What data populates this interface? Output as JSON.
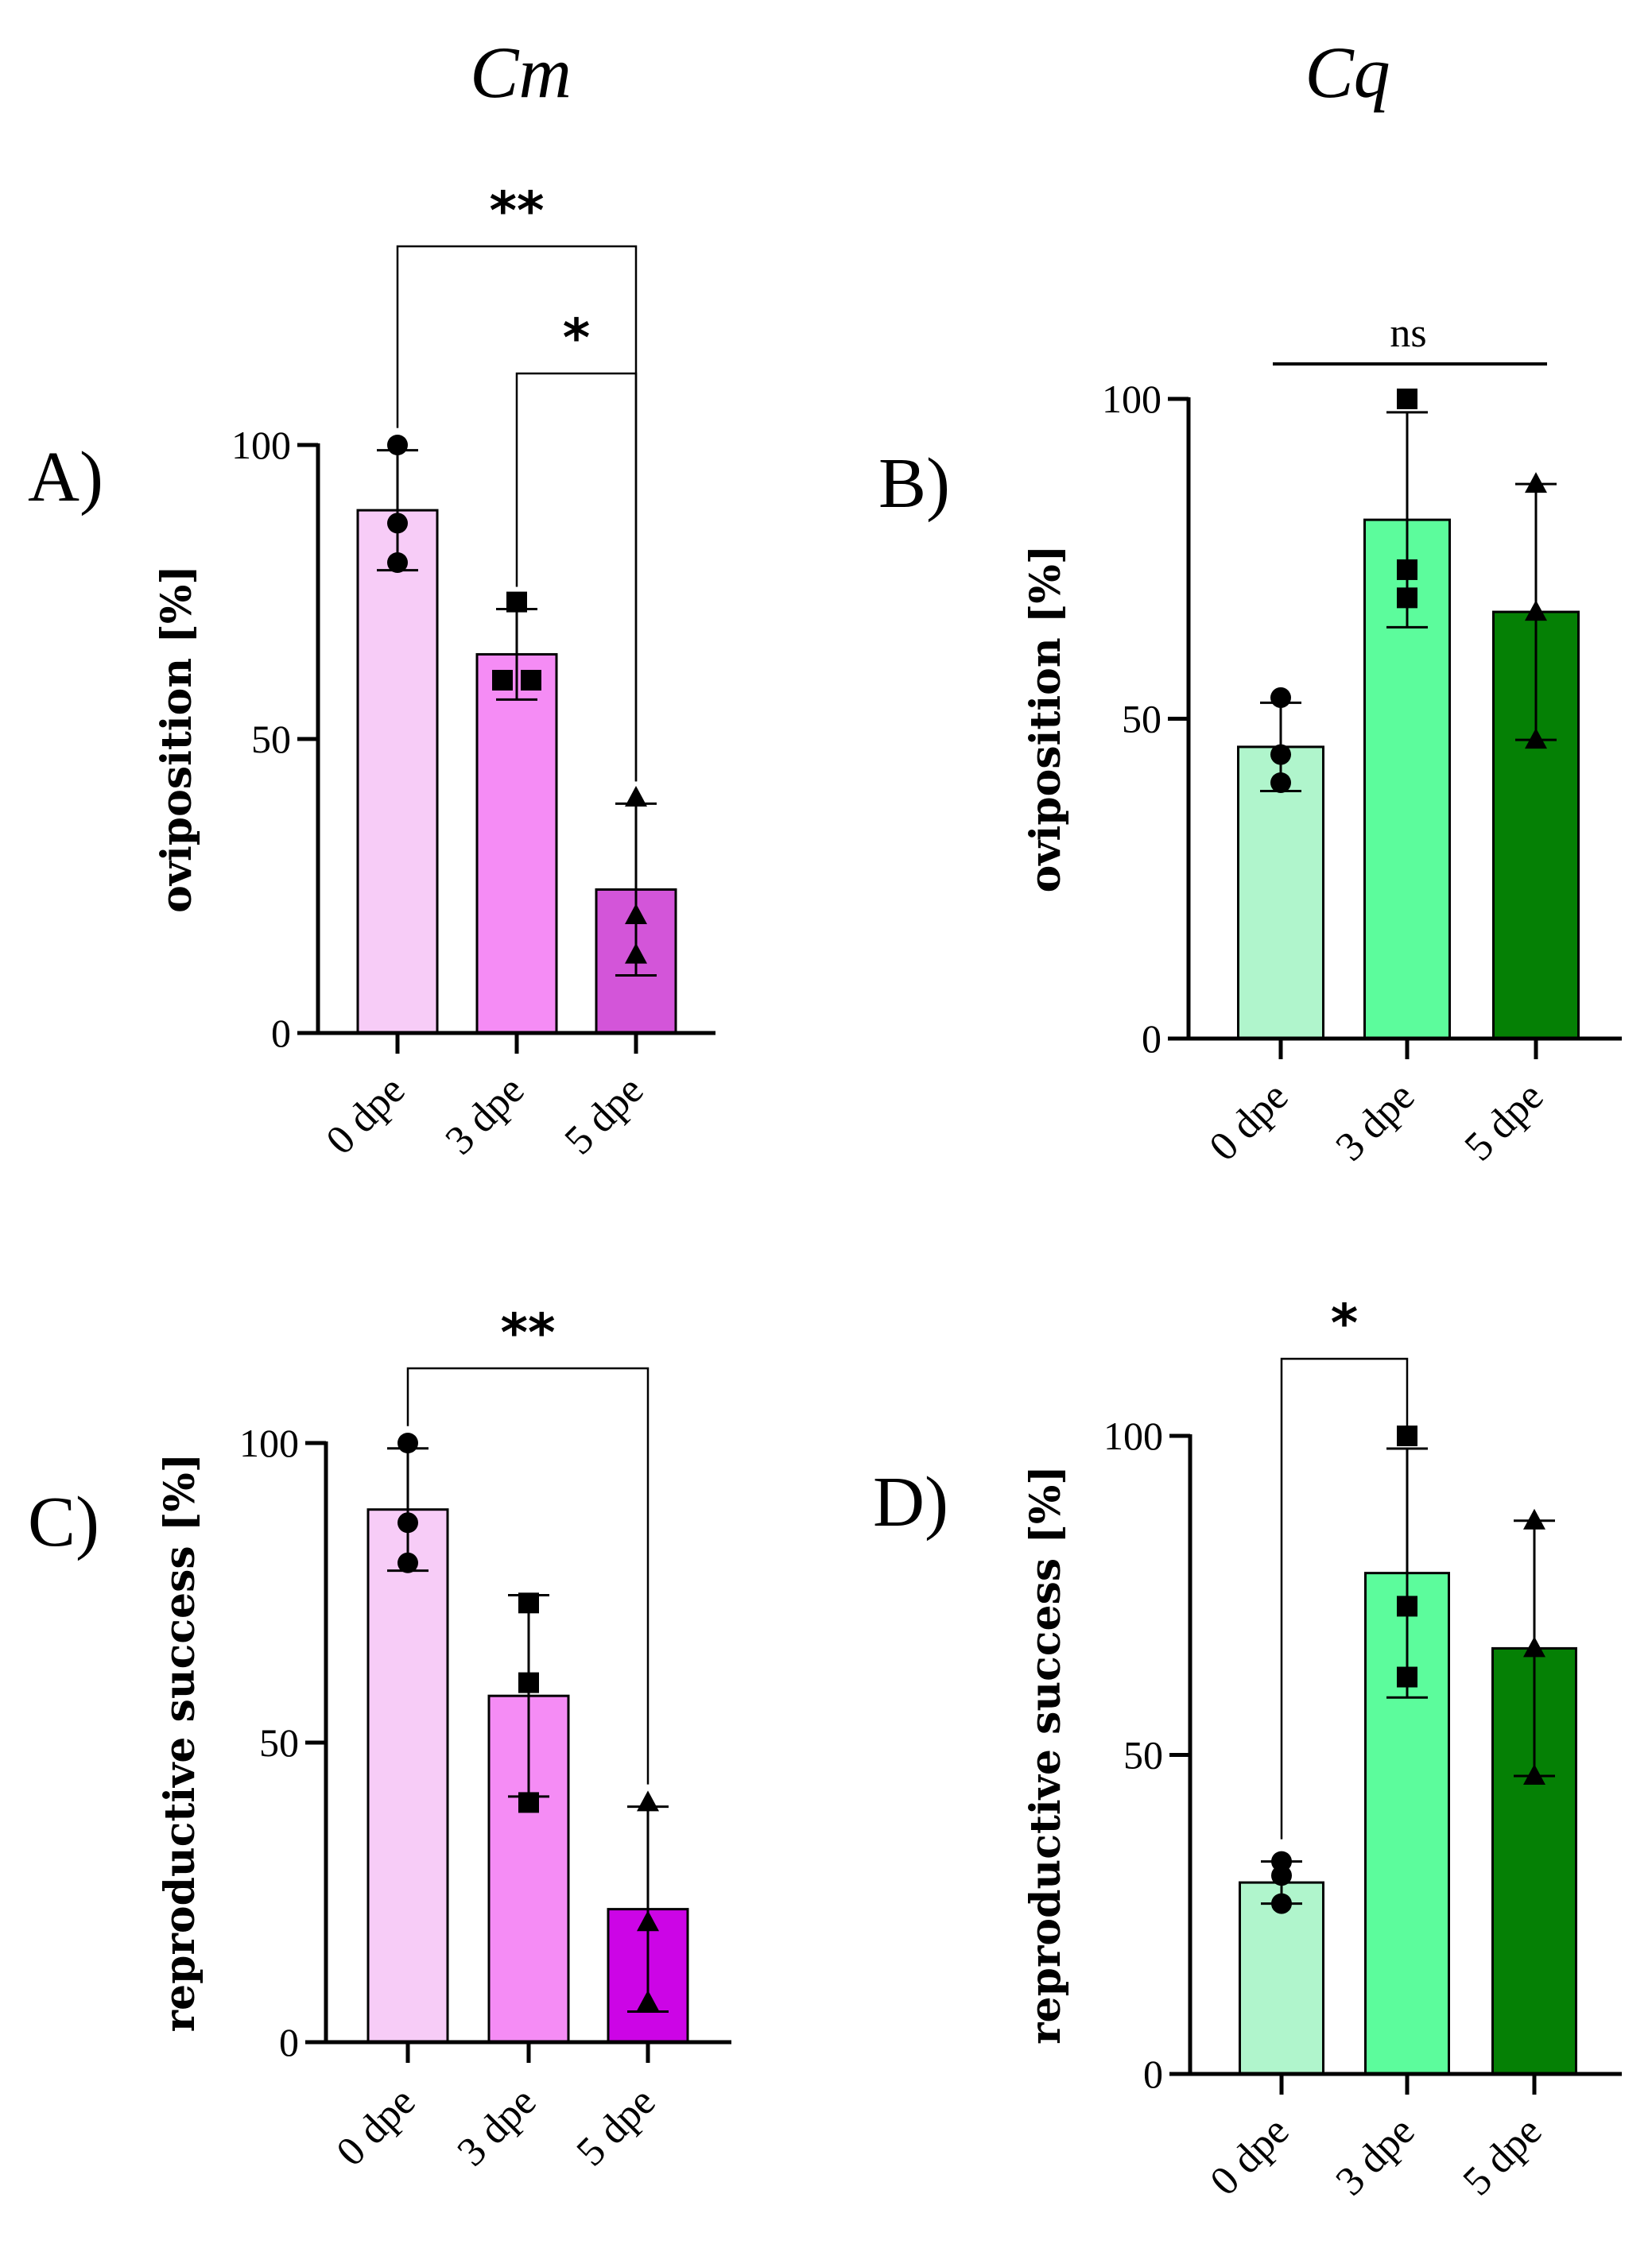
{
  "column_titles": [
    "Cm",
    "Cq"
  ],
  "chart_data": [
    {
      "panel": "A)",
      "type": "bar",
      "categories": [
        "0 dpe",
        "3 dpe",
        "5 dpe"
      ],
      "values": [
        88.9,
        64.4,
        24.4
      ],
      "errors": [
        10.2,
        7.7,
        14.6
      ],
      "points": [
        [
          100,
          86.7,
          80
        ],
        [
          73.3,
          60,
          60
        ],
        [
          40,
          20,
          13.3
        ]
      ],
      "markers": [
        "circle",
        "square",
        "triangle"
      ],
      "colors": [
        "#f7ccf7",
        "#f58cf5",
        "#d355d9"
      ],
      "ylabel": "oviposition [%]",
      "yticks": [
        0,
        50,
        100
      ],
      "ylim": [
        0,
        100
      ],
      "significance": [
        {
          "from": 0,
          "to": 2,
          "label": "**"
        },
        {
          "from": 1,
          "to": 2,
          "label": "*"
        }
      ]
    },
    {
      "panel": "B)",
      "type": "bar",
      "categories": [
        "0 dpe",
        "3 dpe",
        "5 dpe"
      ],
      "values": [
        45.6,
        81.1,
        66.7
      ],
      "errors": [
        6.9,
        16.8,
        20
      ],
      "points": [
        [
          53.3,
          44.4,
          40
        ],
        [
          100,
          73.3,
          68.9
        ],
        [
          86.7,
          66.7,
          46.7
        ]
      ],
      "markers": [
        "circle",
        "square",
        "triangle"
      ],
      "colors": [
        "#b0f5cc",
        "#5cfc9c",
        "#058005"
      ],
      "ylabel": "oviposition [%]",
      "yticks": [
        0,
        50,
        100
      ],
      "ylim": [
        0,
        100
      ],
      "significance": [
        {
          "from": 0,
          "to": 2,
          "label": "ns",
          "style": "line"
        }
      ]
    },
    {
      "panel": "C)",
      "type": "bar",
      "categories": [
        "0 dpe",
        "3 dpe",
        "5 dpe"
      ],
      "values": [
        88.9,
        57.8,
        22.2
      ],
      "errors": [
        10.2,
        16.8,
        17.1
      ],
      "points": [
        [
          100,
          86.7,
          80
        ],
        [
          73.3,
          60,
          40
        ],
        [
          40,
          20,
          6.7
        ]
      ],
      "markers": [
        "circle",
        "square",
        "triangle"
      ],
      "colors": [
        "#f7ccf7",
        "#f58cf5",
        "#cc05e6"
      ],
      "ylabel": "reproductive success [%]",
      "yticks": [
        0,
        50,
        100
      ],
      "ylim": [
        0,
        100
      ],
      "significance": [
        {
          "from": 0,
          "to": 2,
          "label": "**"
        }
      ]
    },
    {
      "panel": "D)",
      "type": "bar",
      "categories": [
        "0 dpe",
        "3 dpe",
        "5 dpe"
      ],
      "values": [
        30,
        78.5,
        66.7
      ],
      "errors": [
        3.3,
        19.5,
        20
      ],
      "points": [
        [
          33.3,
          31.1,
          26.7
        ],
        [
          100,
          73.3,
          62.2
        ],
        [
          86.7,
          66.7,
          46.7
        ]
      ],
      "markers": [
        "circle",
        "square",
        "triangle"
      ],
      "colors": [
        "#b0f5cc",
        "#5cfc9c",
        "#058005"
      ],
      "ylabel": "reproductive success [%]",
      "yticks": [
        0,
        50,
        100
      ],
      "ylim": [
        0,
        100
      ],
      "significance": [
        {
          "from": 0,
          "to": 1,
          "label": "*"
        }
      ]
    }
  ]
}
